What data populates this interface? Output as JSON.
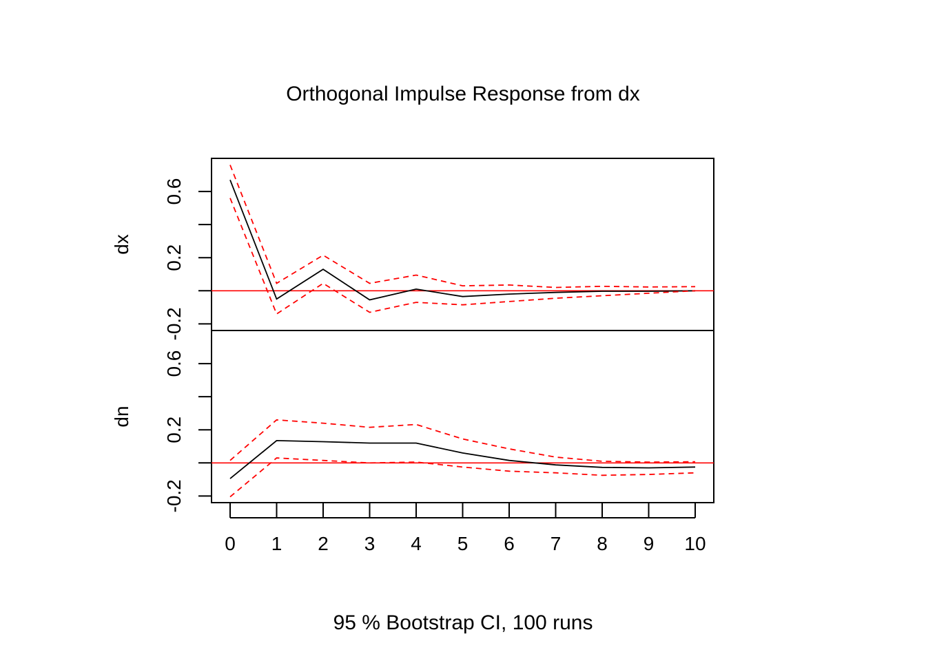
{
  "chart_data": {
    "type": "line",
    "title": "Orthogonal Impulse Response from dx",
    "footer": "95 % Bootstrap CI,  100 runs",
    "x": [
      0,
      1,
      2,
      3,
      4,
      5,
      6,
      7,
      8,
      9,
      10
    ],
    "x_ticks": [
      "0",
      "1",
      "2",
      "3",
      "4",
      "5",
      "6",
      "7",
      "8",
      "9",
      "10"
    ],
    "colors": {
      "response": "#000000",
      "ci": "#ff0000",
      "zero_line": "#ff0000"
    },
    "panels": [
      {
        "ylabel": "dx",
        "ylim": [
          -0.24,
          0.8
        ],
        "y_ticks": [
          -0.2,
          0.0,
          0.2,
          0.4,
          0.6
        ],
        "y_tick_labels": [
          "-0.2",
          "",
          "0.2",
          "",
          "0.6"
        ],
        "series": [
          {
            "role": "response",
            "values": [
              0.67,
              -0.05,
              0.13,
              -0.055,
              0.01,
              -0.035,
              -0.02,
              -0.01,
              -0.003,
              -0.003,
              0.0
            ]
          },
          {
            "role": "ci_upper",
            "values": [
              0.76,
              0.045,
              0.215,
              0.045,
              0.095,
              0.03,
              0.035,
              0.02,
              0.027,
              0.023,
              0.025
            ]
          },
          {
            "role": "ci_lower",
            "values": [
              0.56,
              -0.14,
              0.045,
              -0.13,
              -0.07,
              -0.085,
              -0.065,
              -0.045,
              -0.03,
              -0.015,
              0.0
            ]
          }
        ]
      },
      {
        "ylabel": "dn",
        "ylim": [
          -0.24,
          0.8
        ],
        "y_ticks": [
          -0.2,
          0.0,
          0.2,
          0.4,
          0.6
        ],
        "y_tick_labels": [
          "-0.2",
          "",
          "0.2",
          "",
          "0.6"
        ],
        "series": [
          {
            "role": "response",
            "values": [
              -0.095,
              0.135,
              0.128,
              0.12,
              0.12,
              0.06,
              0.015,
              -0.012,
              -0.027,
              -0.03,
              -0.025
            ]
          },
          {
            "role": "ci_upper",
            "values": [
              0.015,
              0.26,
              0.24,
              0.215,
              0.232,
              0.145,
              0.085,
              0.035,
              0.01,
              0.005,
              0.007
            ]
          },
          {
            "role": "ci_lower",
            "values": [
              -0.205,
              0.03,
              0.015,
              0.0,
              0.005,
              -0.025,
              -0.05,
              -0.06,
              -0.075,
              -0.07,
              -0.06
            ]
          }
        ]
      }
    ]
  }
}
